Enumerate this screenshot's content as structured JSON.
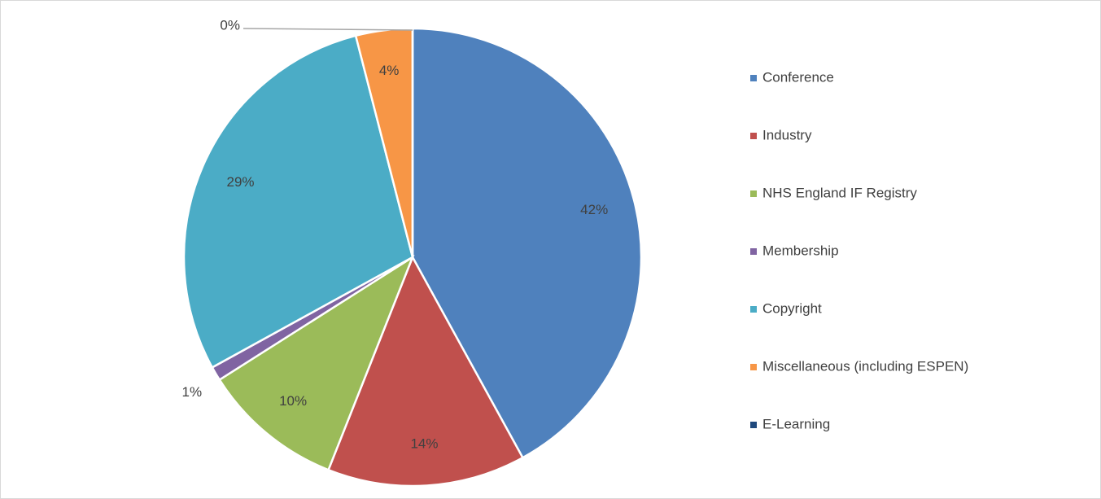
{
  "chart_data": {
    "type": "pie",
    "categories": [
      "Conference",
      "Industry",
      "NHS England IF Registry",
      "Membership",
      "Copyright",
      "Miscellaneous (including ESPEN)",
      "E-Learning"
    ],
    "values": [
      42,
      14,
      10,
      1,
      29,
      4,
      0
    ],
    "value_labels": [
      "42%",
      "14%",
      "10%",
      "1%",
      "29%",
      "4%",
      "0%"
    ],
    "colors": [
      "#4f81bd",
      "#c0504d",
      "#9bbb59",
      "#8064a2",
      "#4bacc6",
      "#f79646",
      "#1f497d"
    ],
    "legend": "right"
  }
}
